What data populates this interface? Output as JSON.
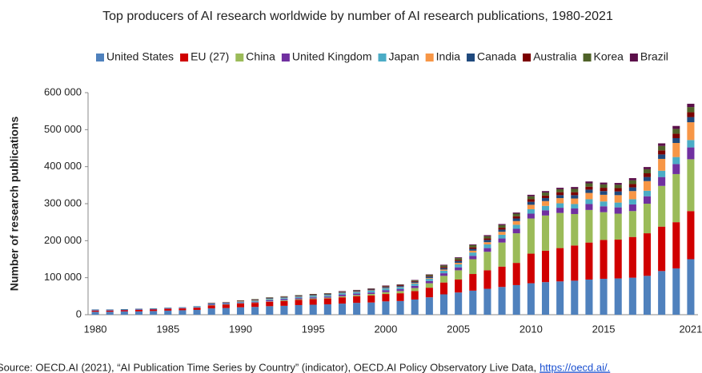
{
  "chart_data": {
    "type": "stacked_bar",
    "title": "Top producers of AI research worldwide by number of AI research publications, 1980-2021",
    "y_label": "Number of research publications",
    "source": "Source: OECD.AI (2021), “AI Publication Time Series by Country” (indicator), OECD.AI Policy Observatory Live Data,",
    "source_link": "https://oecd.ai/.",
    "categories": [
      "1980",
      null,
      null,
      null,
      null,
      "1985",
      null,
      null,
      null,
      null,
      "1990",
      null,
      null,
      null,
      null,
      "1995",
      null,
      null,
      null,
      null,
      "2000",
      null,
      null,
      null,
      null,
      "2005",
      null,
      null,
      null,
      null,
      "2010",
      null,
      null,
      null,
      null,
      "2015",
      null,
      null,
      null,
      null,
      null,
      "2021"
    ],
    "ylim": [
      0,
      600000
    ],
    "yticks": [
      0,
      {
        "value": 100000,
        "label": "100 000"
      },
      {
        "value": 200000,
        "label": "200 000"
      },
      {
        "value": 300000,
        "label": "300 000"
      },
      {
        "value": 400000,
        "label": "400 000"
      },
      {
        "value": 500000,
        "label": "500 000"
      },
      {
        "value": 600000,
        "label": "600 000"
      }
    ],
    "grid": false,
    "legend": "top",
    "series": [
      {
        "name": "United States",
        "color": "#4f81bd",
        "values": [
          8000,
          8000,
          9000,
          9000,
          10000,
          11000,
          12000,
          13000,
          17000,
          18000,
          20000,
          21000,
          23000,
          24000,
          26000,
          27000,
          28000,
          30000,
          32000,
          33000,
          36000,
          37000,
          41000,
          47000,
          55000,
          60000,
          65000,
          70000,
          75000,
          80000,
          85000,
          88000,
          90000,
          92000,
          95000,
          97000,
          98000,
          100000,
          105000,
          118000,
          125000,
          150000
        ]
      },
      {
        "name": "EU (27)",
        "color": "#d00000",
        "values": [
          3000,
          3000,
          3000,
          4000,
          4000,
          5000,
          5000,
          6000,
          8000,
          9000,
          10000,
          11000,
          12000,
          13000,
          14000,
          15000,
          16000,
          17000,
          18000,
          19000,
          20000,
          21000,
          23000,
          26000,
          32000,
          35000,
          45000,
          50000,
          55000,
          60000,
          80000,
          85000,
          90000,
          95000,
          100000,
          105000,
          105000,
          110000,
          115000,
          120000,
          125000,
          130000
        ]
      },
      {
        "name": "China",
        "color": "#9bbb59",
        "values": [
          0,
          0,
          0,
          0,
          0,
          0,
          0,
          0,
          1000,
          1000,
          1000,
          1000,
          1000,
          2000,
          2000,
          2000,
          2000,
          3000,
          3000,
          4000,
          5000,
          6000,
          8000,
          12000,
          18000,
          25000,
          40000,
          50000,
          65000,
          80000,
          95000,
          95000,
          95000,
          85000,
          88000,
          75000,
          70000,
          70000,
          80000,
          110000,
          130000,
          140000
        ]
      },
      {
        "name": "United Kingdom",
        "color": "#7030a0",
        "values": [
          1000,
          1000,
          1000,
          1000,
          1000,
          1000,
          1000,
          1000,
          2000,
          2000,
          2000,
          2000,
          3000,
          3000,
          3000,
          3000,
          3000,
          4000,
          4000,
          4000,
          5000,
          5000,
          6000,
          6000,
          7000,
          8000,
          9000,
          10000,
          11000,
          12000,
          13000,
          14000,
          14000,
          15000,
          16000,
          16000,
          17000,
          18000,
          20000,
          24000,
          27000,
          32000
        ]
      },
      {
        "name": "Japan",
        "color": "#4bacc6",
        "values": [
          1000,
          1000,
          1000,
          1000,
          1000,
          1000,
          1000,
          2000,
          2000,
          2000,
          2000,
          3000,
          3000,
          3000,
          3000,
          4000,
          4000,
          4000,
          4000,
          5000,
          5000,
          5000,
          6000,
          6000,
          7000,
          8000,
          9000,
          10000,
          10000,
          11000,
          12000,
          12000,
          12000,
          12000,
          13000,
          13000,
          13000,
          14000,
          15000,
          17000,
          19000,
          20000
        ]
      },
      {
        "name": "India",
        "color": "#f79646",
        "values": [
          0,
          0,
          0,
          0,
          0,
          0,
          0,
          0,
          0,
          0,
          1000,
          1000,
          1000,
          1000,
          1000,
          1000,
          1000,
          1000,
          1000,
          1000,
          1000,
          1000,
          2000,
          2000,
          3000,
          4000,
          5000,
          6000,
          8000,
          10000,
          12000,
          13000,
          14000,
          15000,
          17000,
          18000,
          20000,
          22000,
          26000,
          32000,
          38000,
          48000
        ]
      },
      {
        "name": "Canada",
        "color": "#1f497d",
        "values": [
          1000,
          1000,
          1000,
          1000,
          1000,
          1000,
          1000,
          1000,
          1000,
          1000,
          1000,
          1000,
          2000,
          2000,
          2000,
          2000,
          2000,
          2000,
          2000,
          2000,
          3000,
          3000,
          3000,
          4000,
          4000,
          5000,
          5000,
          6000,
          6000,
          7000,
          8000,
          8000,
          8000,
          9000,
          9000,
          10000,
          10000,
          10000,
          11000,
          12000,
          13000,
          14000
        ]
      },
      {
        "name": "Australia",
        "color": "#7b0000",
        "values": [
          0,
          0,
          0,
          0,
          0,
          0,
          0,
          0,
          1000,
          1000,
          1000,
          1000,
          1000,
          1000,
          1000,
          1000,
          1000,
          1000,
          1000,
          1000,
          2000,
          2000,
          2000,
          2000,
          3000,
          3000,
          4000,
          4000,
          5000,
          6000,
          7000,
          7000,
          8000,
          8000,
          8000,
          9000,
          9000,
          9000,
          10000,
          11000,
          12000,
          13000
        ]
      },
      {
        "name": "Korea",
        "color": "#4f6228",
        "values": [
          0,
          0,
          0,
          0,
          0,
          0,
          0,
          0,
          0,
          0,
          1000,
          1000,
          1000,
          1000,
          1000,
          1000,
          1000,
          1000,
          1000,
          1000,
          1000,
          1000,
          2000,
          3000,
          4000,
          5000,
          6000,
          6000,
          7000,
          7000,
          8000,
          8000,
          8000,
          9000,
          9000,
          9000,
          9000,
          10000,
          11000,
          12000,
          13000,
          14000
        ]
      },
      {
        "name": "Brazil",
        "color": "#5b0f4a",
        "values": [
          0,
          0,
          0,
          0,
          0,
          0,
          0,
          0,
          0,
          0,
          0,
          0,
          0,
          0,
          0,
          0,
          0,
          1000,
          1000,
          1000,
          1000,
          1000,
          1000,
          1000,
          2000,
          2000,
          2000,
          3000,
          3000,
          3000,
          4000,
          4000,
          4000,
          5000,
          5000,
          5000,
          5000,
          6000,
          6000,
          7000,
          8000,
          9000
        ]
      }
    ]
  }
}
